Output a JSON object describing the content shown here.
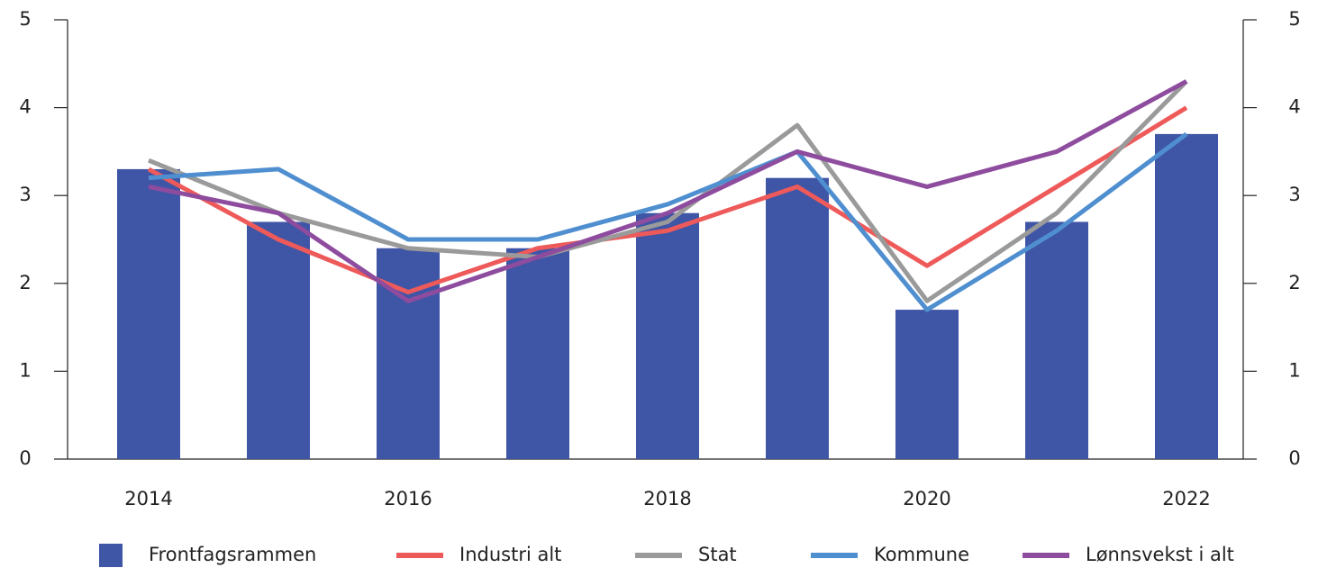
{
  "chart_data": {
    "type": "bar_line",
    "categories": [
      "2014",
      null,
      "2016",
      null,
      "2018",
      null,
      "2020",
      null,
      "2022"
    ],
    "bar": {
      "name": "Frontfagsrammen",
      "color": "#3f55a6",
      "values": [
        3.3,
        2.7,
        2.4,
        2.4,
        2.8,
        3.2,
        1.7,
        2.7,
        3.7
      ]
    },
    "series": [
      {
        "name": "Industri alt",
        "color": "#ee5a5a",
        "values": [
          3.3,
          2.5,
          1.9,
          2.4,
          2.6,
          3.1,
          2.2,
          3.1,
          4.0
        ]
      },
      {
        "name": "Stat",
        "color": "#9a9a9a",
        "values": [
          3.4,
          2.8,
          2.4,
          2.3,
          2.7,
          3.8,
          1.8,
          2.8,
          4.3
        ]
      },
      {
        "name": "Kommune",
        "color": "#4f8fd0",
        "values": [
          3.2,
          3.3,
          2.5,
          2.5,
          2.9,
          3.5,
          1.7,
          2.6,
          3.7
        ]
      },
      {
        "name": "Lønnsvekst i alt",
        "color": "#8e4c9e",
        "values": [
          3.1,
          2.8,
          1.8,
          2.3,
          2.8,
          3.5,
          3.1,
          3.5,
          4.3
        ]
      }
    ],
    "ylim": [
      0,
      5
    ],
    "yticks": [
      0,
      1,
      2,
      3,
      4,
      5
    ],
    "y2lim": [
      0,
      5
    ],
    "y2ticks": [
      0,
      1,
      2,
      3,
      4,
      5
    ],
    "legend": "bottom"
  }
}
